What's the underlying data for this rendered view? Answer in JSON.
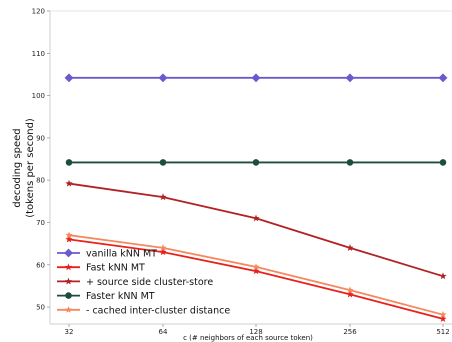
{
  "chart_data": {
    "type": "line",
    "title": "",
    "xlabel": "c (# neighbors of each source token)",
    "ylabel_lines": [
      "decoding speed",
      "(tokens per second)"
    ],
    "x_scale": "log2",
    "categories": [
      "32",
      "64",
      "128",
      "256",
      "512"
    ],
    "x": [
      32,
      64,
      128,
      256,
      512
    ],
    "yticks": [
      50,
      60,
      70,
      80,
      90,
      100,
      110,
      120
    ],
    "ylim": [
      46,
      120
    ],
    "grid": false,
    "legend_position": "lower-left",
    "series": [
      {
        "name": "vanilla kNN MT",
        "color": "#6a5acd",
        "marker": "diamond",
        "values": [
          104.2,
          104.2,
          104.2,
          104.2,
          104.2
        ]
      },
      {
        "name": "Fast kNN MT",
        "color": "#e8221b",
        "marker": "star",
        "values": [
          66.0,
          63.0,
          58.5,
          53.0,
          47.2
        ]
      },
      {
        "name": " + source side cluster-store",
        "color": "#b22222",
        "marker": "star",
        "values": [
          79.2,
          76.0,
          71.0,
          64.0,
          57.3
        ]
      },
      {
        "name": "Faster kNN MT",
        "color": "#1e4d40",
        "marker": "circle",
        "values": [
          84.2,
          84.2,
          84.2,
          84.2,
          84.2
        ]
      },
      {
        "name": " - cached inter-cluster distance",
        "color": "#f4895f",
        "marker": "star",
        "values": [
          67.0,
          64.0,
          59.5,
          54.0,
          48.2
        ]
      }
    ]
  }
}
